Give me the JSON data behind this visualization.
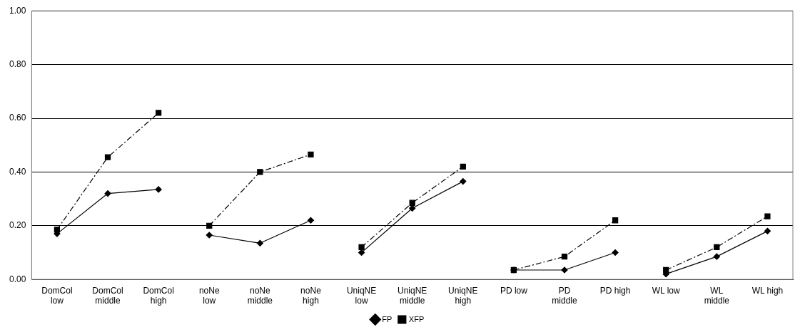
{
  "chart_data": {
    "type": "line",
    "categories": [
      "DomCol low",
      "DomCol middle",
      "DomCol high",
      "noNe low",
      "noNe middle",
      "noNe high",
      "UniqNE low",
      "UniqNE middle",
      "UniqNE high",
      "PD low",
      "PD middle",
      "PD high",
      "WL low",
      "WL middle",
      "WL high"
    ],
    "series": [
      {
        "name": "FP",
        "color": "#000000",
        "line_style": "solid",
        "marker": "diamond",
        "values": [
          0.17,
          0.32,
          0.335,
          null,
          null,
          null,
          null,
          null,
          null,
          null,
          null,
          null,
          null,
          null,
          null
        ]
      },
      {
        "color": "#000000",
        "line_style": "solid",
        "marker": "diamond",
        "values": [
          null,
          null,
          null,
          0.165,
          0.135,
          0.22,
          null,
          null,
          null,
          null,
          null,
          null,
          null,
          null,
          null
        ]
      },
      {
        "color": "#000000",
        "line_style": "solid",
        "marker": "diamond",
        "values": [
          null,
          null,
          null,
          null,
          null,
          null,
          0.1,
          0.265,
          0.365,
          null,
          null,
          null,
          null,
          null,
          null
        ]
      },
      {
        "color": "#000000",
        "line_style": "solid",
        "marker": "diamond",
        "values": [
          null,
          null,
          null,
          null,
          null,
          null,
          null,
          null,
          null,
          0.035,
          0.035,
          0.1,
          null,
          null,
          null
        ]
      },
      {
        "color": "#000000",
        "line_style": "solid",
        "marker": "diamond",
        "values": [
          null,
          null,
          null,
          null,
          null,
          null,
          null,
          null,
          null,
          null,
          null,
          null,
          0.02,
          0.085,
          0.18
        ]
      },
      {
        "name": "XFP",
        "color": "#000000",
        "line_style": "dashed",
        "marker": "square",
        "values": [
          0.185,
          0.455,
          0.62,
          null,
          null,
          null,
          null,
          null,
          null,
          null,
          null,
          null,
          null,
          null,
          null
        ]
      },
      {
        "color": "#000000",
        "line_style": "dashed",
        "marker": "square",
        "values": [
          null,
          null,
          null,
          0.2,
          0.4,
          0.465,
          null,
          null,
          null,
          null,
          null,
          null,
          null,
          null,
          null
        ]
      },
      {
        "color": "#000000",
        "line_style": "dashed",
        "marker": "square",
        "values": [
          null,
          null,
          null,
          null,
          null,
          null,
          0.12,
          0.285,
          0.42,
          null,
          null,
          null,
          null,
          null,
          null
        ]
      },
      {
        "color": "#000000",
        "line_style": "dashed",
        "marker": "square",
        "values": [
          null,
          null,
          null,
          null,
          null,
          null,
          null,
          null,
          null,
          0.035,
          0.085,
          0.22,
          null,
          null,
          null
        ]
      },
      {
        "color": "#000000",
        "line_style": "dashed",
        "marker": "square",
        "values": [
          null,
          null,
          null,
          null,
          null,
          null,
          null,
          null,
          null,
          null,
          null,
          null,
          0.035,
          0.12,
          0.235
        ]
      }
    ],
    "ylim": [
      0,
      1
    ],
    "yticks": [
      {
        "value": 0,
        "label": "0.00"
      },
      {
        "value": 0.2,
        "label": "0.20"
      },
      {
        "value": 0.4,
        "label": "0.40"
      },
      {
        "value": 0.6,
        "label": "0.60"
      },
      {
        "value": 0.8,
        "label": "0.80"
      },
      {
        "value": 1,
        "label": "1.00"
      }
    ],
    "grid": "y",
    "legend": "bottom"
  }
}
